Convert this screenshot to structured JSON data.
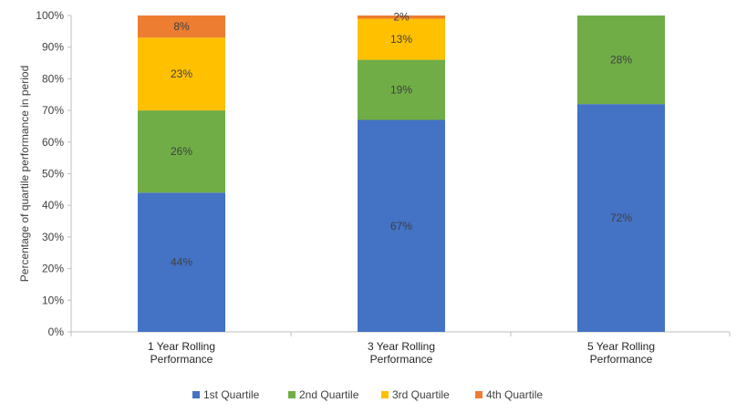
{
  "chart_data": {
    "type": "bar",
    "stacked": true,
    "categories": [
      [
        "1 Year Rolling",
        "Performance"
      ],
      [
        "3 Year Rolling",
        "Performance"
      ],
      [
        "5 Year Rolling",
        "Performance"
      ]
    ],
    "series": [
      {
        "name": "1st Quartile",
        "color": "#4472C4",
        "values": [
          44,
          67,
          72
        ],
        "labels": [
          "44%",
          "67%",
          "72%"
        ]
      },
      {
        "name": "2nd Quartile",
        "color": "#70AD47",
        "values": [
          26,
          19,
          28
        ],
        "labels": [
          "26%",
          "19%",
          "28%"
        ]
      },
      {
        "name": "3rd Quartile",
        "color": "#FFC000",
        "values": [
          23,
          13,
          0
        ],
        "labels": [
          "23%",
          "13%",
          ""
        ]
      },
      {
        "name": "4th Quartile",
        "color": "#ED7D31",
        "values": [
          8,
          2,
          0
        ],
        "labels": [
          "8%",
          "2%",
          ""
        ]
      }
    ],
    "ylabel": "Percentage of quartile performance in period",
    "ylim": [
      0,
      100
    ],
    "yticks": [
      "0%",
      "10%",
      "20%",
      "30%",
      "40%",
      "50%",
      "60%",
      "70%",
      "80%",
      "90%",
      "100%"
    ],
    "grid": false,
    "legend": "bottom"
  }
}
